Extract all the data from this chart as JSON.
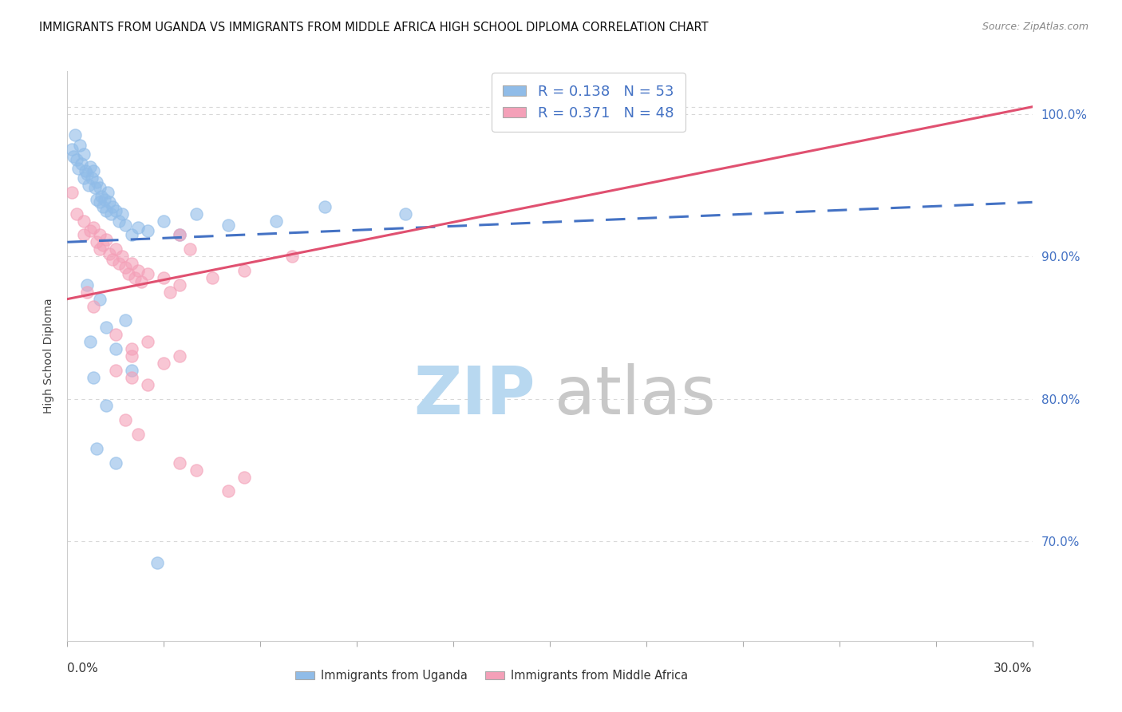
{
  "title": "IMMIGRANTS FROM UGANDA VS IMMIGRANTS FROM MIDDLE AFRICA HIGH SCHOOL DIPLOMA CORRELATION CHART",
  "source": "Source: ZipAtlas.com",
  "ylabel": "High School Diploma",
  "xlim": [
    0.0,
    30.0
  ],
  "ylim": [
    63.0,
    103.0
  ],
  "yticks": [
    70.0,
    80.0,
    90.0,
    100.0
  ],
  "legend_r1_val": "0.138",
  "legend_n1": "53",
  "legend_r2_val": "0.371",
  "legend_n2": "48",
  "uganda_color": "#90bce8",
  "middle_africa_color": "#f4a0b8",
  "uganda_scatter": [
    [
      0.15,
      97.5
    ],
    [
      0.2,
      97.0
    ],
    [
      0.25,
      98.5
    ],
    [
      0.3,
      96.8
    ],
    [
      0.35,
      96.2
    ],
    [
      0.4,
      97.8
    ],
    [
      0.45,
      96.5
    ],
    [
      0.5,
      97.2
    ],
    [
      0.5,
      95.5
    ],
    [
      0.55,
      96.0
    ],
    [
      0.6,
      95.8
    ],
    [
      0.65,
      95.0
    ],
    [
      0.7,
      96.3
    ],
    [
      0.75,
      95.5
    ],
    [
      0.8,
      96.0
    ],
    [
      0.85,
      94.8
    ],
    [
      0.9,
      95.2
    ],
    [
      0.9,
      94.0
    ],
    [
      1.0,
      94.8
    ],
    [
      1.0,
      93.8
    ],
    [
      1.05,
      94.2
    ],
    [
      1.1,
      93.5
    ],
    [
      1.15,
      94.0
    ],
    [
      1.2,
      93.2
    ],
    [
      1.25,
      94.5
    ],
    [
      1.3,
      93.8
    ],
    [
      1.35,
      93.0
    ],
    [
      1.4,
      93.5
    ],
    [
      1.5,
      93.2
    ],
    [
      1.6,
      92.5
    ],
    [
      1.7,
      93.0
    ],
    [
      1.8,
      92.2
    ],
    [
      2.0,
      91.5
    ],
    [
      2.2,
      92.0
    ],
    [
      2.5,
      91.8
    ],
    [
      3.0,
      92.5
    ],
    [
      3.5,
      91.5
    ],
    [
      4.0,
      93.0
    ],
    [
      5.0,
      92.2
    ],
    [
      6.5,
      92.5
    ],
    [
      8.0,
      93.5
    ],
    [
      10.5,
      93.0
    ],
    [
      0.6,
      88.0
    ],
    [
      1.0,
      87.0
    ],
    [
      1.2,
      85.0
    ],
    [
      1.5,
      83.5
    ],
    [
      1.8,
      85.5
    ],
    [
      0.8,
      81.5
    ],
    [
      1.2,
      79.5
    ],
    [
      0.9,
      76.5
    ],
    [
      1.5,
      75.5
    ],
    [
      0.7,
      84.0
    ],
    [
      2.8,
      68.5
    ],
    [
      2.0,
      82.0
    ]
  ],
  "middle_africa_scatter": [
    [
      0.15,
      94.5
    ],
    [
      0.3,
      93.0
    ],
    [
      0.5,
      92.5
    ],
    [
      0.5,
      91.5
    ],
    [
      0.7,
      91.8
    ],
    [
      0.8,
      92.0
    ],
    [
      0.9,
      91.0
    ],
    [
      1.0,
      90.5
    ],
    [
      1.0,
      91.5
    ],
    [
      1.1,
      90.8
    ],
    [
      1.2,
      91.2
    ],
    [
      1.3,
      90.2
    ],
    [
      1.4,
      89.8
    ],
    [
      1.5,
      90.5
    ],
    [
      1.6,
      89.5
    ],
    [
      1.7,
      90.0
    ],
    [
      1.8,
      89.2
    ],
    [
      1.9,
      88.8
    ],
    [
      2.0,
      89.5
    ],
    [
      2.1,
      88.5
    ],
    [
      2.2,
      89.0
    ],
    [
      2.3,
      88.2
    ],
    [
      2.5,
      88.8
    ],
    [
      3.0,
      88.5
    ],
    [
      3.2,
      87.5
    ],
    [
      3.5,
      88.0
    ],
    [
      4.5,
      88.5
    ],
    [
      5.5,
      89.0
    ],
    [
      7.0,
      90.0
    ],
    [
      0.6,
      87.5
    ],
    [
      0.8,
      86.5
    ],
    [
      1.5,
      84.5
    ],
    [
      2.0,
      83.5
    ],
    [
      2.5,
      84.0
    ],
    [
      1.5,
      82.0
    ],
    [
      2.0,
      81.5
    ],
    [
      2.0,
      83.0
    ],
    [
      2.5,
      81.0
    ],
    [
      3.0,
      82.5
    ],
    [
      3.5,
      83.0
    ],
    [
      1.8,
      78.5
    ],
    [
      2.2,
      77.5
    ],
    [
      3.5,
      75.5
    ],
    [
      4.0,
      75.0
    ],
    [
      5.0,
      73.5
    ],
    [
      5.5,
      74.5
    ],
    [
      3.5,
      91.5
    ],
    [
      3.8,
      90.5
    ]
  ],
  "uganda_line": [
    0.0,
    91.0,
    30.0,
    93.8
  ],
  "middle_africa_line": [
    0.0,
    87.0,
    30.0,
    100.5
  ],
  "bg_color": "#ffffff",
  "title_fontsize": 10.5,
  "axis_label_fontsize": 10,
  "tick_fontsize": 10,
  "legend_fontsize": 13,
  "watermark_fontsize": 60,
  "watermark_zip_color": "#b8d8f0",
  "watermark_atlas_color": "#c8c8c8",
  "right_tick_color": "#4472c4",
  "line_blue_color": "#4472c4",
  "line_pink_color": "#e05070",
  "grid_color": "#d8d8d8"
}
